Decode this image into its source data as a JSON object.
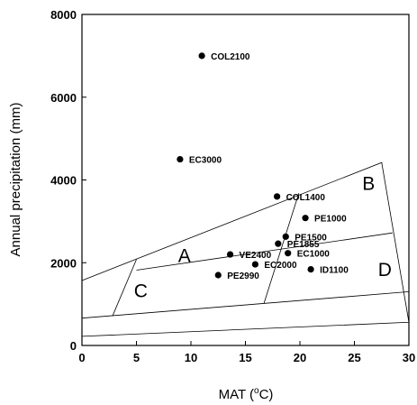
{
  "chart_data": {
    "type": "scatter",
    "xlabel_main": "MAT (",
    "xlabel_sup": "o",
    "xlabel_tail": "C)",
    "ylabel": "Annual precipitation (mm)",
    "xlim": [
      0,
      30
    ],
    "ylim": [
      0,
      8000
    ],
    "x_ticks": [
      0,
      5,
      10,
      15,
      20,
      25,
      30
    ],
    "y_ticks": [
      0,
      2000,
      4000,
      6000,
      8000
    ],
    "grid": false,
    "points": [
      {
        "label": "COL2100",
        "x": 11.0,
        "y": 7000
      },
      {
        "label": "EC3000",
        "x": 9.0,
        "y": 4500
      },
      {
        "label": "COL1400",
        "x": 17.9,
        "y": 3600
      },
      {
        "label": "PE1000",
        "x": 20.5,
        "y": 3080
      },
      {
        "label": "PE1500",
        "x": 18.7,
        "y": 2630
      },
      {
        "label": "PE1855",
        "x": 18.0,
        "y": 2460
      },
      {
        "label": "EC1000",
        "x": 18.9,
        "y": 2230
      },
      {
        "label": "VE2400",
        "x": 13.6,
        "y": 2200
      },
      {
        "label": "EC2000",
        "x": 15.9,
        "y": 1960
      },
      {
        "label": "ID1100",
        "x": 21.0,
        "y": 1840
      },
      {
        "label": "PE2990",
        "x": 12.5,
        "y": 1700
      }
    ],
    "region_labels": [
      {
        "text": "A",
        "x": 9.4,
        "y": 2190
      },
      {
        "text": "B",
        "x": 26.3,
        "y": 3930
      },
      {
        "text": "C",
        "x": 5.4,
        "y": 1340
      },
      {
        "text": "D",
        "x": 27.8,
        "y": 1850
      }
    ],
    "boundary_lines": [
      [
        [
          0,
          1570
        ],
        [
          27.5,
          4420
        ],
        [
          30,
          560
        ],
        [
          0,
          220
        ]
      ],
      [
        [
          0,
          660
        ],
        [
          30,
          1300
        ]
      ],
      [
        [
          5,
          1820
        ],
        [
          28.5,
          2720
        ]
      ],
      [
        [
          5,
          2080
        ],
        [
          2.8,
          710
        ]
      ],
      [
        [
          19.9,
          3680
        ],
        [
          16.7,
          1020
        ]
      ]
    ]
  }
}
